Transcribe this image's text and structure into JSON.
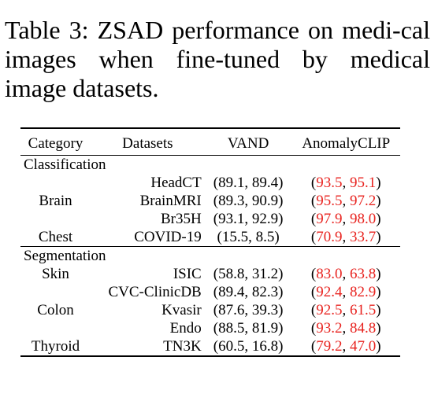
{
  "caption": "Table 3: ZSAD performance on medi-cal images when fine-tuned by medical image datasets.",
  "headers": {
    "category": "Category",
    "datasets": "Datasets",
    "vand": "VAND",
    "anomalyclip": "AnomalyCLIP"
  },
  "sections": [
    {
      "title": "Classification",
      "rows": [
        {
          "category": "",
          "dataset": "HeadCT",
          "vand": "(89.1, 89.4)",
          "ac_open": "(",
          "ac_a": "93.5",
          "ac_sep": ", ",
          "ac_b": "95.1",
          "ac_close": ")"
        },
        {
          "category": "Brain",
          "dataset": "BrainMRI",
          "vand": "(89.3, 90.9)",
          "ac_open": "(",
          "ac_a": "95.5",
          "ac_sep": ", ",
          "ac_b": "97.2",
          "ac_close": ")"
        },
        {
          "category": "",
          "dataset": "Br35H",
          "vand": "(93.1, 92.9)",
          "ac_open": "(",
          "ac_a": "97.9",
          "ac_sep": ", ",
          "ac_b": "98.0",
          "ac_close": ")"
        },
        {
          "category": "Chest",
          "dataset": "COVID-19",
          "vand": "(15.5, 8.5)",
          "ac_open": "(",
          "ac_a": "70.9",
          "ac_sep": ", ",
          "ac_b": "33.7",
          "ac_close": ")"
        }
      ]
    },
    {
      "title": "Segmentation",
      "rows": [
        {
          "category": "Skin",
          "dataset": "ISIC",
          "vand": "(58.8, 31.2)",
          "ac_open": "(",
          "ac_a": "83.0",
          "ac_sep": ", ",
          "ac_b": "63.8",
          "ac_close": ")"
        },
        {
          "category": "",
          "dataset": "CVC-ClinicDB",
          "vand": "(89.4, 82.3)",
          "ac_open": "(",
          "ac_a": "92.4",
          "ac_sep": ", ",
          "ac_b": "82.9",
          "ac_close": ")"
        },
        {
          "category": "Colon",
          "dataset": "Kvasir",
          "vand": "(87.6, 39.3)",
          "ac_open": "(",
          "ac_a": "92.5",
          "ac_sep": ", ",
          "ac_b": "61.5",
          "ac_close": ")"
        },
        {
          "category": "",
          "dataset": "Endo",
          "vand": "(88.5, 81.9)",
          "ac_open": "(",
          "ac_a": "93.2",
          "ac_sep": ", ",
          "ac_b": "84.8",
          "ac_close": ")"
        },
        {
          "category": "Thyroid",
          "dataset": "TN3K",
          "vand": "(60.5, 16.8)",
          "ac_open": "(",
          "ac_a": "79.2",
          "ac_sep": ", ",
          "ac_b": "47.0",
          "ac_close": ")"
        }
      ]
    }
  ],
  "colors": {
    "highlight": "#e8231f"
  }
}
